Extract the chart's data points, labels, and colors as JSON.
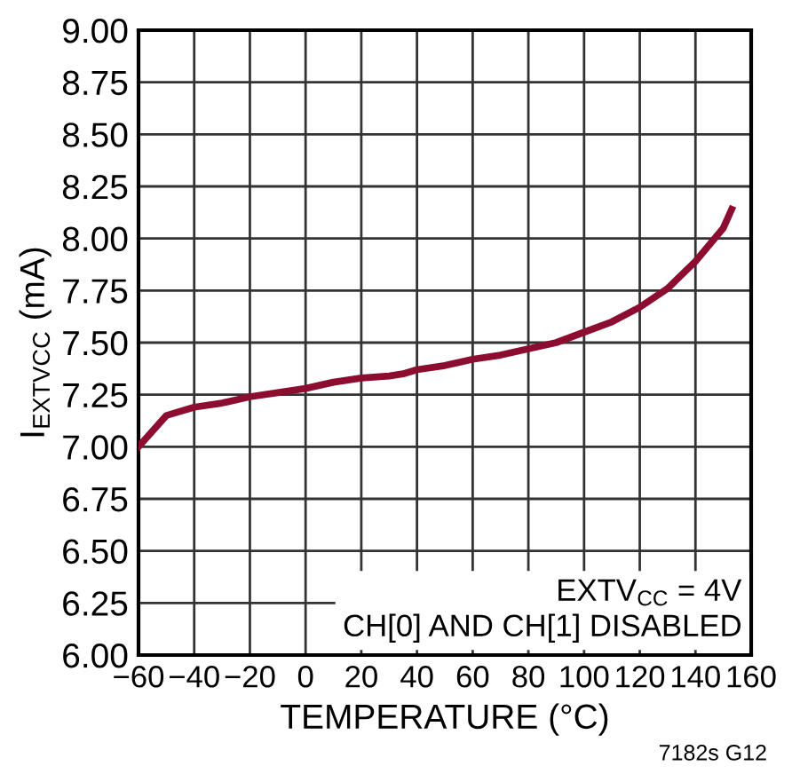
{
  "chart_data": {
    "type": "line",
    "xlabel": "TEMPERATURE (°C)",
    "ylabel": "I$_{EXTVCC}$ (mA)",
    "x": [
      -60,
      -50,
      -40,
      -30,
      -20,
      -10,
      0,
      10,
      20,
      30,
      35,
      40,
      50,
      60,
      70,
      80,
      90,
      100,
      110,
      120,
      130,
      140,
      150,
      153
    ],
    "series": [
      {
        "color": "#8c0d30",
        "values": [
          7.0,
          7.15,
          7.19,
          7.21,
          7.24,
          7.26,
          7.28,
          7.31,
          7.33,
          7.34,
          7.35,
          7.37,
          7.39,
          7.42,
          7.44,
          7.47,
          7.5,
          7.55,
          7.6,
          7.67,
          7.76,
          7.89,
          8.05,
          8.14
        ]
      }
    ],
    "xlim": [
      -60,
      160
    ],
    "xticks": [
      {
        "value": -60,
        "label": "−60"
      },
      {
        "value": -40,
        "label": "−40"
      },
      {
        "value": -20,
        "label": "−20"
      },
      0,
      20,
      40,
      60,
      80,
      100,
      120,
      140,
      160
    ],
    "ylim": [
      6.0,
      9.0
    ],
    "yticks": [
      {
        "value": 6.0,
        "label": "6.00"
      },
      {
        "value": 6.25,
        "label": "6.25"
      },
      {
        "value": 6.5,
        "label": "6.50"
      },
      {
        "value": 6.75,
        "label": "6.75"
      },
      {
        "value": 7.0,
        "label": "7.00"
      },
      {
        "value": 7.25,
        "label": "7.25"
      },
      {
        "value": 7.5,
        "label": "7.50"
      },
      {
        "value": 7.75,
        "label": "7.75"
      },
      {
        "value": 8.0,
        "label": "8.00"
      },
      {
        "value": 8.25,
        "label": "8.25"
      },
      {
        "value": 8.5,
        "label": "8.50"
      },
      {
        "value": 8.75,
        "label": "8.75"
      },
      {
        "value": 9.0,
        "label": "9.00"
      }
    ],
    "grid": true,
    "marker": "none",
    "line_style": "solid",
    "annotations": [
      "EXTV$_{CC}$ = 4V",
      "CH[0] AND CH[1] DISABLED",
      "7182s G12"
    ]
  }
}
